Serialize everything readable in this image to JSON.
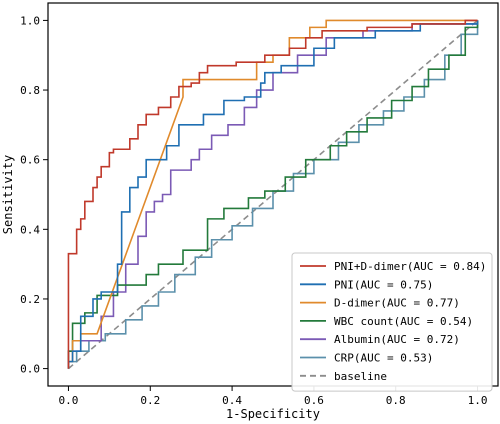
{
  "chart_data": {
    "type": "line",
    "xlabel": "1-Specificity",
    "ylabel": "Sensitivity",
    "xlim": [
      -0.05,
      1.05
    ],
    "ylim": [
      -0.05,
      1.05
    ],
    "x_ticks": [
      "0.0",
      "0.2",
      "0.4",
      "0.6",
      "0.8",
      "1.0"
    ],
    "y_ticks": [
      "0.0",
      "0.2",
      "0.4",
      "0.6",
      "0.8",
      "1.0"
    ],
    "grid": false,
    "legend_position": "lower-right",
    "series": [
      {
        "name": "PNI+D-dimer(AUC = 0.84)",
        "color": "#c0392b",
        "dash": false,
        "points": [
          [
            0,
            0
          ],
          [
            0,
            0.33
          ],
          [
            0.02,
            0.33
          ],
          [
            0.02,
            0.4
          ],
          [
            0.03,
            0.4
          ],
          [
            0.03,
            0.43
          ],
          [
            0.04,
            0.43
          ],
          [
            0.04,
            0.48
          ],
          [
            0.06,
            0.48
          ],
          [
            0.06,
            0.52
          ],
          [
            0.07,
            0.52
          ],
          [
            0.07,
            0.55
          ],
          [
            0.08,
            0.55
          ],
          [
            0.08,
            0.58
          ],
          [
            0.1,
            0.58
          ],
          [
            0.1,
            0.62
          ],
          [
            0.11,
            0.62
          ],
          [
            0.11,
            0.63
          ],
          [
            0.15,
            0.63
          ],
          [
            0.15,
            0.66
          ],
          [
            0.17,
            0.66
          ],
          [
            0.17,
            0.7
          ],
          [
            0.19,
            0.7
          ],
          [
            0.19,
            0.73
          ],
          [
            0.22,
            0.73
          ],
          [
            0.22,
            0.75
          ],
          [
            0.25,
            0.75
          ],
          [
            0.25,
            0.78
          ],
          [
            0.27,
            0.78
          ],
          [
            0.27,
            0.81
          ],
          [
            0.3,
            0.81
          ],
          [
            0.3,
            0.82
          ],
          [
            0.32,
            0.82
          ],
          [
            0.32,
            0.85
          ],
          [
            0.34,
            0.85
          ],
          [
            0.34,
            0.87
          ],
          [
            0.41,
            0.87
          ],
          [
            0.41,
            0.88
          ],
          [
            0.48,
            0.88
          ],
          [
            0.48,
            0.9
          ],
          [
            0.54,
            0.9
          ],
          [
            0.54,
            0.92
          ],
          [
            0.58,
            0.92
          ],
          [
            0.58,
            0.95
          ],
          [
            0.62,
            0.95
          ],
          [
            0.62,
            0.97
          ],
          [
            0.73,
            0.97
          ],
          [
            0.73,
            0.98
          ],
          [
            0.84,
            0.98
          ],
          [
            0.84,
            0.99
          ],
          [
            0.97,
            0.99
          ],
          [
            0.97,
            1.0
          ],
          [
            1.0,
            1.0
          ]
        ]
      },
      {
        "name": "PNI(AUC = 0.75)",
        "color": "#1f6fb2",
        "dash": false,
        "points": [
          [
            0,
            0
          ],
          [
            0,
            0.02
          ],
          [
            0.01,
            0.02
          ],
          [
            0.01,
            0.05
          ],
          [
            0.03,
            0.05
          ],
          [
            0.03,
            0.15
          ],
          [
            0.06,
            0.15
          ],
          [
            0.06,
            0.2
          ],
          [
            0.08,
            0.2
          ],
          [
            0.08,
            0.22
          ],
          [
            0.12,
            0.22
          ],
          [
            0.12,
            0.3
          ],
          [
            0.13,
            0.3
          ],
          [
            0.13,
            0.45
          ],
          [
            0.15,
            0.45
          ],
          [
            0.15,
            0.52
          ],
          [
            0.17,
            0.52
          ],
          [
            0.17,
            0.55
          ],
          [
            0.19,
            0.55
          ],
          [
            0.19,
            0.6
          ],
          [
            0.24,
            0.6
          ],
          [
            0.24,
            0.64
          ],
          [
            0.27,
            0.64
          ],
          [
            0.27,
            0.7
          ],
          [
            0.33,
            0.7
          ],
          [
            0.33,
            0.73
          ],
          [
            0.38,
            0.73
          ],
          [
            0.38,
            0.77
          ],
          [
            0.43,
            0.77
          ],
          [
            0.43,
            0.78
          ],
          [
            0.47,
            0.78
          ],
          [
            0.47,
            0.82
          ],
          [
            0.48,
            0.82
          ],
          [
            0.48,
            0.85
          ],
          [
            0.52,
            0.85
          ],
          [
            0.52,
            0.87
          ],
          [
            0.6,
            0.87
          ],
          [
            0.6,
            0.92
          ],
          [
            0.65,
            0.92
          ],
          [
            0.65,
            0.95
          ],
          [
            0.75,
            0.95
          ],
          [
            0.75,
            0.97
          ],
          [
            0.86,
            0.97
          ],
          [
            0.86,
            0.99
          ],
          [
            1.0,
            0.99
          ],
          [
            1.0,
            1.0
          ]
        ]
      },
      {
        "name": "D-dimer(AUC = 0.77)",
        "color": "#e08a2c",
        "dash": false,
        "points": [
          [
            0,
            0
          ],
          [
            0,
            0.02
          ],
          [
            0.01,
            0.02
          ],
          [
            0.01,
            0.08
          ],
          [
            0.03,
            0.08
          ],
          [
            0.03,
            0.1
          ],
          [
            0.07,
            0.1
          ],
          [
            0.28,
            0.78
          ],
          [
            0.28,
            0.83
          ],
          [
            0.46,
            0.83
          ],
          [
            0.46,
            0.88
          ],
          [
            0.5,
            0.88
          ],
          [
            0.5,
            0.9
          ],
          [
            0.54,
            0.9
          ],
          [
            0.54,
            0.95
          ],
          [
            0.59,
            0.95
          ],
          [
            0.59,
            0.98
          ],
          [
            0.63,
            0.98
          ],
          [
            0.63,
            1.0
          ],
          [
            1.0,
            1.0
          ]
        ]
      },
      {
        "name": "WBC count(AUC = 0.54)",
        "color": "#237a3b",
        "dash": false,
        "points": [
          [
            0,
            0
          ],
          [
            0,
            0.05
          ],
          [
            0.01,
            0.05
          ],
          [
            0.01,
            0.13
          ],
          [
            0.04,
            0.13
          ],
          [
            0.04,
            0.16
          ],
          [
            0.07,
            0.16
          ],
          [
            0.07,
            0.21
          ],
          [
            0.12,
            0.21
          ],
          [
            0.12,
            0.24
          ],
          [
            0.19,
            0.24
          ],
          [
            0.19,
            0.27
          ],
          [
            0.22,
            0.27
          ],
          [
            0.22,
            0.3
          ],
          [
            0.28,
            0.3
          ],
          [
            0.28,
            0.34
          ],
          [
            0.34,
            0.34
          ],
          [
            0.34,
            0.43
          ],
          [
            0.38,
            0.43
          ],
          [
            0.38,
            0.46
          ],
          [
            0.44,
            0.46
          ],
          [
            0.44,
            0.49
          ],
          [
            0.48,
            0.49
          ],
          [
            0.48,
            0.51
          ],
          [
            0.53,
            0.51
          ],
          [
            0.53,
            0.55
          ],
          [
            0.58,
            0.55
          ],
          [
            0.58,
            0.6
          ],
          [
            0.64,
            0.6
          ],
          [
            0.64,
            0.64
          ],
          [
            0.68,
            0.64
          ],
          [
            0.68,
            0.68
          ],
          [
            0.73,
            0.68
          ],
          [
            0.73,
            0.72
          ],
          [
            0.79,
            0.72
          ],
          [
            0.79,
            0.77
          ],
          [
            0.84,
            0.77
          ],
          [
            0.84,
            0.81
          ],
          [
            0.88,
            0.81
          ],
          [
            0.88,
            0.86
          ],
          [
            0.93,
            0.86
          ],
          [
            0.93,
            0.9
          ],
          [
            0.97,
            0.9
          ],
          [
            0.97,
            0.98
          ],
          [
            1.0,
            0.98
          ],
          [
            1.0,
            1.0
          ]
        ]
      },
      {
        "name": "Albumin(AUC = 0.72)",
        "color": "#7b5ab5",
        "dash": false,
        "points": [
          [
            0,
            0
          ],
          [
            0,
            0.05
          ],
          [
            0.03,
            0.05
          ],
          [
            0.03,
            0.08
          ],
          [
            0.08,
            0.08
          ],
          [
            0.08,
            0.15
          ],
          [
            0.11,
            0.15
          ],
          [
            0.11,
            0.22
          ],
          [
            0.14,
            0.22
          ],
          [
            0.14,
            0.3
          ],
          [
            0.17,
            0.3
          ],
          [
            0.17,
            0.38
          ],
          [
            0.19,
            0.38
          ],
          [
            0.19,
            0.45
          ],
          [
            0.21,
            0.45
          ],
          [
            0.21,
            0.48
          ],
          [
            0.23,
            0.48
          ],
          [
            0.23,
            0.5
          ],
          [
            0.25,
            0.5
          ],
          [
            0.25,
            0.57
          ],
          [
            0.3,
            0.57
          ],
          [
            0.3,
            0.6
          ],
          [
            0.32,
            0.6
          ],
          [
            0.32,
            0.63
          ],
          [
            0.35,
            0.63
          ],
          [
            0.35,
            0.67
          ],
          [
            0.39,
            0.67
          ],
          [
            0.39,
            0.7
          ],
          [
            0.43,
            0.7
          ],
          [
            0.43,
            0.75
          ],
          [
            0.46,
            0.75
          ],
          [
            0.46,
            0.8
          ],
          [
            0.5,
            0.8
          ],
          [
            0.5,
            0.85
          ],
          [
            0.56,
            0.85
          ],
          [
            0.56,
            0.9
          ],
          [
            0.63,
            0.9
          ],
          [
            0.63,
            0.95
          ],
          [
            0.72,
            0.95
          ],
          [
            0.72,
            0.97
          ],
          [
            0.84,
            0.97
          ],
          [
            0.84,
            0.99
          ],
          [
            1.0,
            0.99
          ],
          [
            1.0,
            1.0
          ]
        ]
      },
      {
        "name": "CRP(AUC = 0.53)",
        "color": "#5b90ab",
        "dash": false,
        "points": [
          [
            0,
            0
          ],
          [
            0,
            0.02
          ],
          [
            0.02,
            0.02
          ],
          [
            0.02,
            0.05
          ],
          [
            0.05,
            0.05
          ],
          [
            0.05,
            0.08
          ],
          [
            0.09,
            0.08
          ],
          [
            0.09,
            0.1
          ],
          [
            0.14,
            0.1
          ],
          [
            0.14,
            0.14
          ],
          [
            0.18,
            0.14
          ],
          [
            0.18,
            0.18
          ],
          [
            0.22,
            0.18
          ],
          [
            0.22,
            0.22
          ],
          [
            0.26,
            0.22
          ],
          [
            0.26,
            0.27
          ],
          [
            0.31,
            0.27
          ],
          [
            0.31,
            0.32
          ],
          [
            0.35,
            0.32
          ],
          [
            0.35,
            0.37
          ],
          [
            0.4,
            0.37
          ],
          [
            0.4,
            0.41
          ],
          [
            0.45,
            0.41
          ],
          [
            0.45,
            0.46
          ],
          [
            0.5,
            0.46
          ],
          [
            0.5,
            0.51
          ],
          [
            0.55,
            0.51
          ],
          [
            0.55,
            0.56
          ],
          [
            0.6,
            0.56
          ],
          [
            0.6,
            0.6
          ],
          [
            0.66,
            0.6
          ],
          [
            0.66,
            0.65
          ],
          [
            0.71,
            0.65
          ],
          [
            0.71,
            0.7
          ],
          [
            0.77,
            0.7
          ],
          [
            0.77,
            0.74
          ],
          [
            0.82,
            0.74
          ],
          [
            0.82,
            0.78
          ],
          [
            0.87,
            0.78
          ],
          [
            0.87,
            0.83
          ],
          [
            0.92,
            0.83
          ],
          [
            0.92,
            0.9
          ],
          [
            0.96,
            0.9
          ],
          [
            0.96,
            0.96
          ],
          [
            1.0,
            0.96
          ],
          [
            1.0,
            1.0
          ]
        ]
      },
      {
        "name": "baseline",
        "color": "#8c8c8c",
        "dash": true,
        "points": [
          [
            0,
            0
          ],
          [
            1,
            1
          ]
        ]
      }
    ]
  }
}
